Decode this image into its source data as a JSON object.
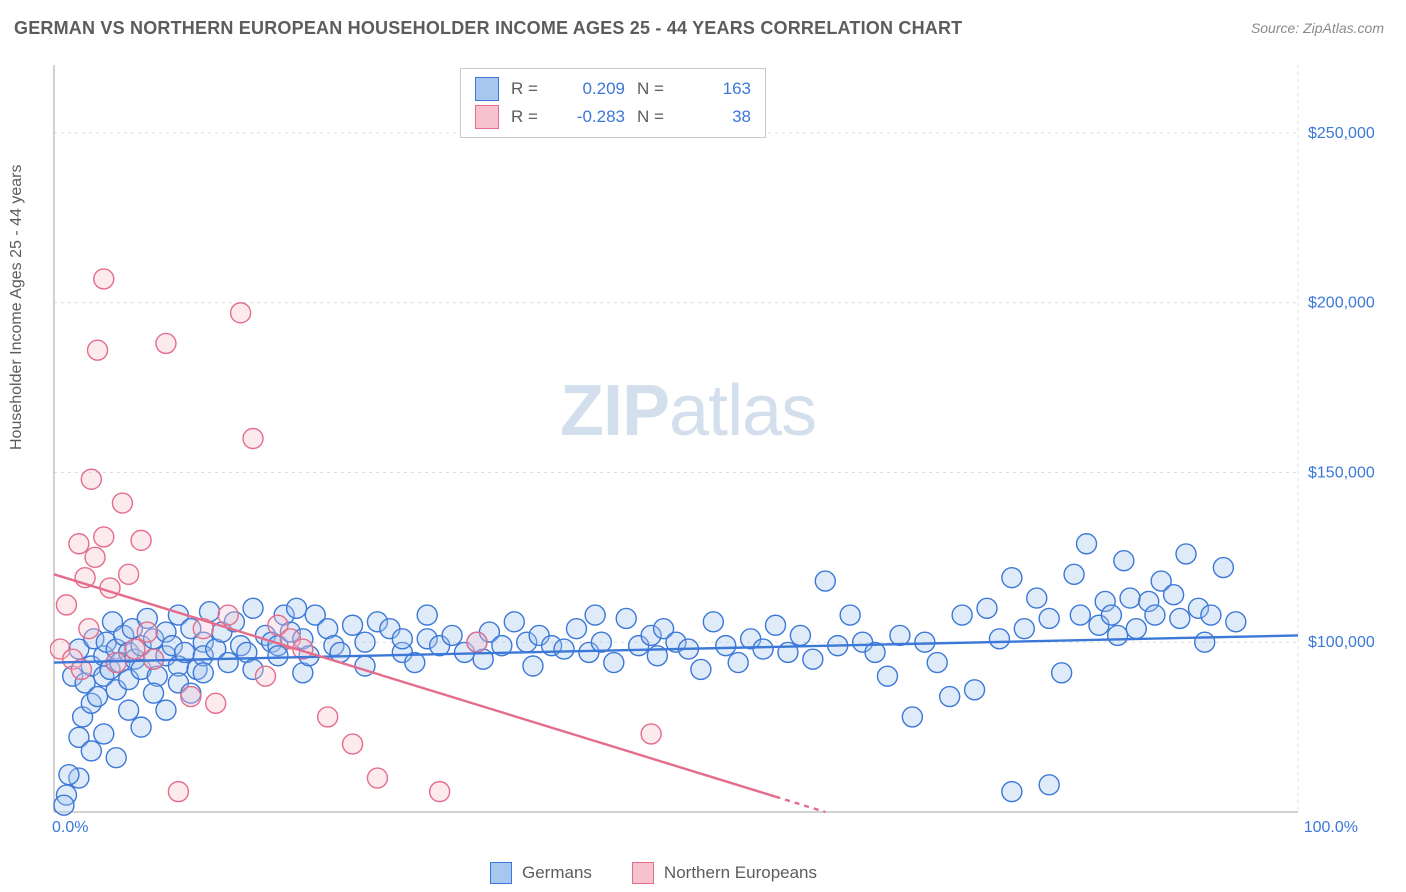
{
  "title": "GERMAN VS NORTHERN EUROPEAN HOUSEHOLDER INCOME AGES 25 - 44 YEARS CORRELATION CHART",
  "source_label": "Source: ZipAtlas.com",
  "ylabel": "Householder Income Ages 25 - 44 years",
  "watermark_a": "ZIP",
  "watermark_b": "atlas",
  "chart": {
    "type": "scatter-two-series-with-regression",
    "background_color": "#ffffff",
    "grid_color": "#dcdcdc",
    "axis_color": "#b8b8b8",
    "tick_font_color": "#3b78d8",
    "tick_fontsize": 16,
    "title_color": "#5c5c5c",
    "title_fontsize": 18,
    "xlim": [
      0,
      100
    ],
    "ylim": [
      50000,
      270000
    ],
    "yticks": [
      100000,
      150000,
      200000,
      250000
    ],
    "ytick_labels": [
      "$100,000",
      "$150,000",
      "$200,000",
      "$250,000"
    ],
    "xtick_labels": [
      "0.0%",
      "100.0%"
    ],
    "marker_radius": 10,
    "marker_fill_opacity": 0.35,
    "marker_stroke_width": 1.4,
    "regression_line_width": 2.4,
    "series": [
      {
        "id": "germans",
        "label": "Germans",
        "fill": "#a7c7ef",
        "stroke": "#3b78d8",
        "regression": {
          "x1": 0,
          "y1": 94000,
          "x2": 100,
          "y2": 102000
        },
        "R": 0.209,
        "N": 163,
        "points": [
          [
            1,
            55000
          ],
          [
            1.5,
            90000
          ],
          [
            2,
            72000
          ],
          [
            2,
            98000
          ],
          [
            2.3,
            78000
          ],
          [
            2.5,
            88000
          ],
          [
            3,
            82000
          ],
          [
            3,
            93000
          ],
          [
            3.2,
            101000
          ],
          [
            3.5,
            84000
          ],
          [
            4,
            90000
          ],
          [
            4,
            96000
          ],
          [
            4.2,
            100000
          ],
          [
            4.5,
            92000
          ],
          [
            4.7,
            106000
          ],
          [
            5,
            86000
          ],
          [
            5,
            98000
          ],
          [
            5.3,
            94000
          ],
          [
            5.6,
            102000
          ],
          [
            6,
            89000
          ],
          [
            6,
            97000
          ],
          [
            6.3,
            104000
          ],
          [
            6.5,
            95000
          ],
          [
            7,
            99000
          ],
          [
            7,
            92000
          ],
          [
            7.5,
            107000
          ],
          [
            8,
            95000
          ],
          [
            8,
            101000
          ],
          [
            8.3,
            90000
          ],
          [
            9,
            103000
          ],
          [
            9,
            96000
          ],
          [
            9.5,
            99000
          ],
          [
            10,
            108000
          ],
          [
            10,
            93000
          ],
          [
            10.5,
            97000
          ],
          [
            11,
            104000
          ],
          [
            11.5,
            92000
          ],
          [
            12,
            100000
          ],
          [
            12,
            96000
          ],
          [
            12.5,
            109000
          ],
          [
            13,
            98000
          ],
          [
            13.5,
            103000
          ],
          [
            14,
            94000
          ],
          [
            14.5,
            106000
          ],
          [
            15,
            99000
          ],
          [
            15.5,
            97000
          ],
          [
            16,
            110000
          ],
          [
            16,
            92000
          ],
          [
            17,
            102000
          ],
          [
            17.5,
            100000
          ],
          [
            18,
            99000
          ],
          [
            18,
            96000
          ],
          [
            18.5,
            108000
          ],
          [
            19,
            103000
          ],
          [
            19.5,
            110000
          ],
          [
            20,
            91000
          ],
          [
            20,
            101000
          ],
          [
            20.5,
            96000
          ],
          [
            21,
            108000
          ],
          [
            22,
            104000
          ],
          [
            22.5,
            99000
          ],
          [
            23,
            97000
          ],
          [
            24,
            105000
          ],
          [
            25,
            93000
          ],
          [
            25,
            100000
          ],
          [
            26,
            106000
          ],
          [
            27,
            104000
          ],
          [
            28,
            97000
          ],
          [
            28,
            101000
          ],
          [
            29,
            94000
          ],
          [
            30,
            108000
          ],
          [
            30,
            101000
          ],
          [
            31,
            99000
          ],
          [
            32,
            102000
          ],
          [
            33,
            97000
          ],
          [
            34,
            100000
          ],
          [
            34.5,
            95000
          ],
          [
            35,
            103000
          ],
          [
            36,
            99000
          ],
          [
            37,
            106000
          ],
          [
            38,
            100000
          ],
          [
            38.5,
            93000
          ],
          [
            39,
            102000
          ],
          [
            40,
            99000
          ],
          [
            41,
            98000
          ],
          [
            42,
            104000
          ],
          [
            43,
            97000
          ],
          [
            43.5,
            108000
          ],
          [
            44,
            100000
          ],
          [
            45,
            94000
          ],
          [
            46,
            107000
          ],
          [
            47,
            99000
          ],
          [
            48,
            102000
          ],
          [
            48.5,
            96000
          ],
          [
            49,
            104000
          ],
          [
            50,
            100000
          ],
          [
            51,
            98000
          ],
          [
            52,
            92000
          ],
          [
            53,
            106000
          ],
          [
            54,
            99000
          ],
          [
            55,
            94000
          ],
          [
            56,
            101000
          ],
          [
            57,
            98000
          ],
          [
            58,
            105000
          ],
          [
            59,
            97000
          ],
          [
            60,
            102000
          ],
          [
            61,
            95000
          ],
          [
            62,
            118000
          ],
          [
            63,
            99000
          ],
          [
            64,
            108000
          ],
          [
            65,
            100000
          ],
          [
            66,
            97000
          ],
          [
            67,
            90000
          ],
          [
            68,
            102000
          ],
          [
            69,
            78000
          ],
          [
            70,
            100000
          ],
          [
            71,
            94000
          ],
          [
            72,
            84000
          ],
          [
            73,
            108000
          ],
          [
            74,
            86000
          ],
          [
            75,
            110000
          ],
          [
            76,
            101000
          ],
          [
            77,
            119000
          ],
          [
            78,
            104000
          ],
          [
            79,
            113000
          ],
          [
            80,
            107000
          ],
          [
            81,
            91000
          ],
          [
            82,
            120000
          ],
          [
            82.5,
            108000
          ],
          [
            83,
            129000
          ],
          [
            84,
            105000
          ],
          [
            84.5,
            112000
          ],
          [
            85,
            108000
          ],
          [
            85.5,
            102000
          ],
          [
            86,
            124000
          ],
          [
            86.5,
            113000
          ],
          [
            87,
            104000
          ],
          [
            88,
            112000
          ],
          [
            88.5,
            108000
          ],
          [
            89,
            118000
          ],
          [
            90,
            114000
          ],
          [
            90.5,
            107000
          ],
          [
            91,
            126000
          ],
          [
            92,
            110000
          ],
          [
            92.5,
            100000
          ],
          [
            93,
            108000
          ],
          [
            94,
            122000
          ],
          [
            95,
            106000
          ],
          [
            77,
            56000
          ],
          [
            80,
            58000
          ],
          [
            2,
            60000
          ],
          [
            3,
            68000
          ],
          [
            4,
            73000
          ],
          [
            5,
            66000
          ],
          [
            6,
            80000
          ],
          [
            7,
            75000
          ],
          [
            8,
            85000
          ],
          [
            9,
            80000
          ],
          [
            10,
            88000
          ],
          [
            11,
            85000
          ],
          [
            12,
            91000
          ],
          [
            0.8,
            52000
          ],
          [
            1.2,
            61000
          ]
        ]
      },
      {
        "id": "northern_europeans",
        "label": "Northern Europeans",
        "fill": "#f5c2cd",
        "stroke": "#e46d8b",
        "regression": {
          "x1": 0,
          "y1": 120000,
          "x2": 62,
          "y2": 50000
        },
        "regression_dashed_from_x": 58,
        "R": -0.283,
        "N": 38,
        "points": [
          [
            0.5,
            98000
          ],
          [
            1,
            111000
          ],
          [
            1.5,
            95000
          ],
          [
            2,
            129000
          ],
          [
            2.2,
            92000
          ],
          [
            2.5,
            119000
          ],
          [
            2.8,
            104000
          ],
          [
            3,
            148000
          ],
          [
            3.3,
            125000
          ],
          [
            3.5,
            186000
          ],
          [
            4,
            131000
          ],
          [
            4,
            207000
          ],
          [
            4.5,
            116000
          ],
          [
            5,
            94000
          ],
          [
            5.5,
            141000
          ],
          [
            6,
            120000
          ],
          [
            6.5,
            98000
          ],
          [
            7,
            130000
          ],
          [
            7.5,
            103000
          ],
          [
            8,
            95000
          ],
          [
            9,
            188000
          ],
          [
            10,
            56000
          ],
          [
            11,
            84000
          ],
          [
            12,
            104000
          ],
          [
            13,
            82000
          ],
          [
            14,
            108000
          ],
          [
            15,
            197000
          ],
          [
            16,
            160000
          ],
          [
            17,
            90000
          ],
          [
            18,
            105000
          ],
          [
            19,
            101000
          ],
          [
            20,
            98000
          ],
          [
            22,
            78000
          ],
          [
            24,
            70000
          ],
          [
            26,
            60000
          ],
          [
            31,
            56000
          ],
          [
            34,
            100000
          ],
          [
            48,
            73000
          ]
        ]
      }
    ]
  },
  "stats_legend": {
    "rows": [
      {
        "swatch_fill": "#a7c7ef",
        "swatch_stroke": "#3b78d8",
        "R_label": "R =",
        "R_value": "0.209",
        "N_label": "N =",
        "N_value": "163"
      },
      {
        "swatch_fill": "#f5c2cd",
        "swatch_stroke": "#e46d8b",
        "R_label": "R =",
        "R_value": "-0.283",
        "N_label": "N =",
        "N_value": "38"
      }
    ]
  },
  "bottom_legend": {
    "items": [
      {
        "fill": "#a7c7ef",
        "stroke": "#3b78d8",
        "label": "Germans"
      },
      {
        "fill": "#f5c2cd",
        "stroke": "#e46d8b",
        "label": "Northern Europeans"
      }
    ]
  }
}
